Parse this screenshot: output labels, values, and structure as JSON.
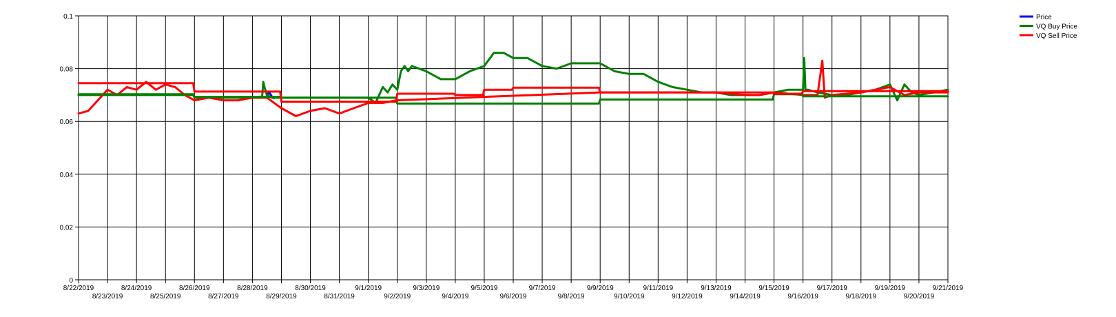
{
  "chart_data": {
    "type": "line",
    "title": "",
    "xlabel": "",
    "ylabel": "",
    "ylim": [
      0,
      0.1
    ],
    "yticks": [
      "0",
      "0.02",
      "0.04",
      "0.06",
      "0.08",
      "0.1"
    ],
    "xlim": [
      "2019-08-22",
      "2019-09-21"
    ],
    "xtick_labels": [
      "8/22/2019",
      "8/23/2019",
      "8/24/2019",
      "8/25/2019",
      "8/26/2019",
      "8/27/2019",
      "8/28/2019",
      "8/29/2019",
      "8/30/2019",
      "8/31/2019",
      "9/1/2019",
      "9/2/2019",
      "9/3/2019",
      "9/4/2019",
      "9/5/2019",
      "9/6/2019",
      "9/7/2019",
      "9/8/2019",
      "9/9/2019",
      "9/10/2019",
      "9/11/2019",
      "9/12/2019",
      "9/13/2019",
      "9/14/2019",
      "9/15/2019",
      "9/16/2019",
      "9/17/2019",
      "9/18/2019",
      "9/19/2019",
      "9/20/2019",
      "9/21/2019"
    ],
    "grid": true,
    "legend_position": "top-right",
    "series": [
      {
        "name": "Price",
        "color": "#0000ff",
        "x": [
          "2019-08-28 12:00",
          "2019-08-28 14:00",
          "2019-08-28 16:00",
          "2019-08-28 18:00"
        ],
        "y": [
          0.07,
          0.071,
          0.0695,
          0.0688
        ]
      },
      {
        "name": "VQ Buy Price",
        "color": "#008000",
        "x": [
          "2019-08-22 00:00",
          "2019-08-25 00:00",
          "2019-08-25 23:00",
          "2019-08-26 00:00",
          "2019-08-28 08:00",
          "2019-08-28 09:00",
          "2019-08-28 10:00",
          "2019-08-28 12:00",
          "2019-08-28 16:00",
          "2019-08-29 00:00",
          "2019-09-01 00:00",
          "2019-09-01 06:00",
          "2019-09-01 12:00",
          "2019-09-01 16:00",
          "2019-09-01 20:00",
          "2019-09-02 00:00",
          "2019-09-02 03:00",
          "2019-09-02 06:00",
          "2019-09-02 09:00",
          "2019-09-02 12:00",
          "2019-09-03 00:00",
          "2019-09-03 12:00",
          "2019-09-04 00:00",
          "2019-09-04 12:00",
          "2019-09-05 00:00",
          "2019-09-05 08:00",
          "2019-09-05 16:00",
          "2019-09-06 00:00",
          "2019-09-06 12:00",
          "2019-09-07 00:00",
          "2019-09-07 12:00",
          "2019-09-08 00:00",
          "2019-09-08 12:00",
          "2019-09-09 00:00",
          "2019-09-09 12:00",
          "2019-09-10 00:00",
          "2019-09-10 12:00",
          "2019-09-11 00:00",
          "2019-09-11 12:00",
          "2019-09-12 00:00",
          "2019-09-12 12:00",
          "2019-09-13 00:00",
          "2019-09-13 12:00",
          "2019-09-14 00:00",
          "2019-09-14 12:00",
          "2019-09-15 00:00",
          "2019-09-15 12:00",
          "2019-09-15 20:00",
          "2019-09-16 00:00",
          "2019-09-16 01:00",
          "2019-09-16 02:00",
          "2019-09-16 04:00",
          "2019-09-16 12:00",
          "2019-09-17 00:00",
          "2019-09-17 12:00",
          "2019-09-18 00:00",
          "2019-09-18 12:00",
          "2019-09-19 00:00",
          "2019-09-19 06:00",
          "2019-09-19 12:00",
          "2019-09-19 18:00",
          "2019-09-20 00:00",
          "2019-09-20 12:00",
          "2019-09-21 00:00"
        ],
        "y": [
          0.07,
          0.07,
          0.07,
          0.069,
          0.069,
          0.075,
          0.073,
          0.07,
          0.069,
          0.069,
          0.069,
          0.067,
          0.073,
          0.071,
          0.074,
          0.072,
          0.079,
          0.081,
          0.079,
          0.081,
          0.079,
          0.076,
          0.076,
          0.079,
          0.081,
          0.086,
          0.086,
          0.084,
          0.084,
          0.081,
          0.08,
          0.082,
          0.082,
          0.082,
          0.079,
          0.078,
          0.078,
          0.075,
          0.073,
          0.072,
          0.071,
          0.071,
          0.07,
          0.07,
          0.07,
          0.071,
          0.072,
          0.072,
          0.072,
          0.084,
          0.072,
          0.072,
          0.071,
          0.07,
          0.07,
          0.071,
          0.072,
          0.074,
          0.068,
          0.074,
          0.071,
          0.07,
          0.071,
          0.072
        ]
      },
      {
        "name": "VQ Sell Price",
        "color": "#ff0000",
        "x": [
          "2019-08-22 00:00",
          "2019-08-22 08:00",
          "2019-08-22 16:00",
          "2019-08-23 00:00",
          "2019-08-23 08:00",
          "2019-08-23 16:00",
          "2019-08-24 00:00",
          "2019-08-24 08:00",
          "2019-08-24 16:00",
          "2019-08-25 00:00",
          "2019-08-25 08:00",
          "2019-08-25 16:00",
          "2019-08-26 00:00",
          "2019-08-26 12:00",
          "2019-08-27 00:00",
          "2019-08-27 12:00",
          "2019-08-28 00:00",
          "2019-08-28 12:00",
          "2019-08-29 00:00",
          "2019-08-29 12:00",
          "2019-08-30 00:00",
          "2019-08-30 12:00",
          "2019-08-31 00:00",
          "2019-08-31 12:00",
          "2019-09-01 00:00",
          "2019-09-01 12:00",
          "2019-09-01 23:00",
          "2019-09-09 00:00",
          "2019-09-12 00:00",
          "2019-09-13 00:00",
          "2019-09-14 00:00",
          "2019-09-14 12:00",
          "2019-09-15 00:00",
          "2019-09-16 00:00",
          "2019-09-16 12:00",
          "2019-09-16 16:00",
          "2019-09-16 18:00",
          "2019-09-17 00:00",
          "2019-09-18 00:00",
          "2019-09-18 12:00",
          "2019-09-19 00:00",
          "2019-09-19 12:00",
          "2019-09-20 00:00",
          "2019-09-20 12:00",
          "2019-09-21 00:00"
        ],
        "y": [
          0.063,
          0.064,
          0.068,
          0.072,
          0.07,
          0.073,
          0.072,
          0.075,
          0.072,
          0.074,
          0.073,
          0.07,
          0.068,
          0.069,
          0.068,
          0.068,
          0.069,
          0.069,
          0.065,
          0.062,
          0.064,
          0.065,
          0.063,
          0.065,
          0.067,
          0.067,
          0.068,
          0.071,
          0.071,
          0.071,
          0.07,
          0.07,
          0.071,
          0.07,
          0.07,
          0.083,
          0.069,
          0.07,
          0.071,
          0.072,
          0.073,
          0.07,
          0.071,
          0.071,
          0.071
        ]
      },
      {
        "name": "",
        "color": "#008000",
        "x": [
          "2019-08-22 00:00",
          "2019-08-25 23:00",
          "2019-08-26 00:00",
          "2019-08-28 23:00",
          "2019-08-29 00:00",
          "2019-09-01 23:00",
          "2019-09-02 00:00",
          "2019-09-08 23:00",
          "2019-09-09 00:00",
          "2019-09-14 23:00",
          "2019-09-15 00:00",
          "2019-09-15 23:00",
          "2019-09-16 00:00",
          "2019-09-21 00:00"
        ],
        "y": [
          0.0703,
          0.0703,
          0.0693,
          0.0693,
          0.069,
          0.069,
          0.0668,
          0.0668,
          0.0683,
          0.0683,
          0.0703,
          0.0703,
          0.0695,
          0.0695
        ]
      },
      {
        "name": "",
        "color": "#ff0000",
        "x": [
          "2019-08-22 00:00",
          "2019-08-25 23:00",
          "2019-08-26 00:00",
          "2019-08-28 23:00",
          "2019-08-29 00:00",
          "2019-09-01 23:00",
          "2019-09-02 00:00",
          "2019-09-03 23:00",
          "2019-09-04 00:00",
          "2019-09-04 23:00",
          "2019-09-05 00:00",
          "2019-09-05 23:00",
          "2019-09-06 00:00",
          "2019-09-08 23:00",
          "2019-09-09 00:00",
          "2019-09-14 23:00",
          "2019-09-15 00:00",
          "2019-09-15 23:00",
          "2019-09-16 00:00",
          "2019-09-21 00:00"
        ],
        "y": [
          0.0745,
          0.0745,
          0.0713,
          0.0713,
          0.0675,
          0.0675,
          0.0705,
          0.0705,
          0.07,
          0.07,
          0.072,
          0.072,
          0.0728,
          0.0728,
          0.071,
          0.071,
          0.0705,
          0.0705,
          0.0715,
          0.0715
        ]
      }
    ]
  }
}
